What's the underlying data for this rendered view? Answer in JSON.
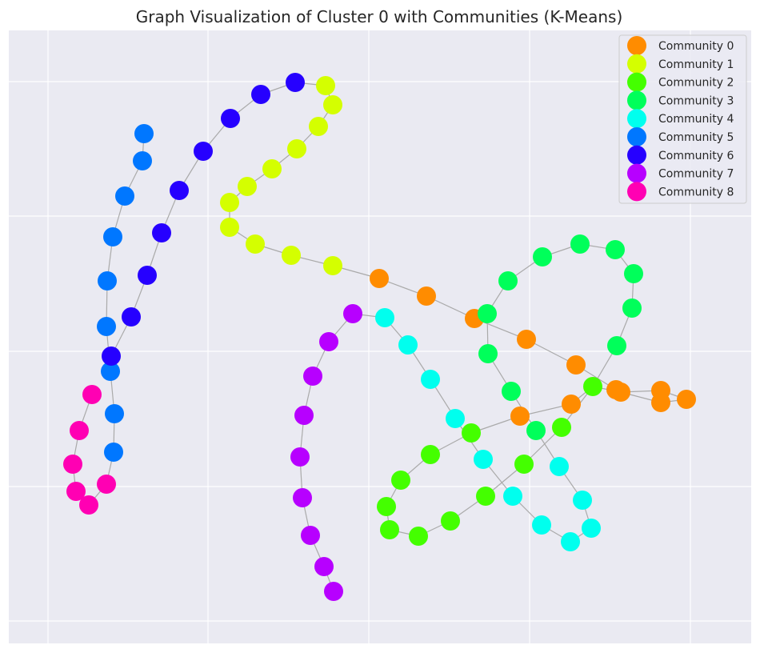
{
  "chart_data": {
    "type": "scatter",
    "title": "Graph Visualization of Cluster 0 with Communities (K-Means)",
    "xlabel": "",
    "ylabel": "",
    "grid": true,
    "legend_position": "top-right",
    "background": "#eaeaf2",
    "edge_color": "#aaaaaa",
    "series": [
      {
        "name": "Community 0",
        "color": "#ff8c00",
        "points": [
          [
            533,
            370
          ],
          [
            593,
            398
          ],
          [
            658,
            424
          ],
          [
            720,
            456
          ],
          [
            714,
            505
          ],
          [
            650,
            520
          ],
          [
            770,
            487
          ],
          [
            776,
            490
          ],
          [
            826,
            488
          ],
          [
            826,
            503
          ],
          [
            858,
            499
          ],
          [
            474,
            348
          ]
        ]
      },
      {
        "name": "Community 1",
        "color": "#d4ff00",
        "points": [
          [
            407,
            107
          ],
          [
            416,
            131
          ],
          [
            398,
            158
          ],
          [
            371,
            186
          ],
          [
            340,
            211
          ],
          [
            309,
            233
          ],
          [
            287,
            253
          ],
          [
            287,
            284
          ],
          [
            319,
            305
          ],
          [
            364,
            319
          ],
          [
            416,
            332
          ]
        ]
      },
      {
        "name": "Community 2",
        "color": "#44ff00",
        "points": [
          [
            741,
            483
          ],
          [
            702,
            534
          ],
          [
            589,
            541
          ],
          [
            538,
            568
          ],
          [
            501,
            600
          ],
          [
            483,
            633
          ],
          [
            487,
            662
          ],
          [
            523,
            670
          ],
          [
            563,
            651
          ],
          [
            607,
            620
          ],
          [
            655,
            580
          ]
        ]
      },
      {
        "name": "Community 3",
        "color": "#00ff5a",
        "points": [
          [
            609,
            392
          ],
          [
            610,
            442
          ],
          [
            639,
            489
          ],
          [
            670,
            538
          ],
          [
            635,
            351
          ],
          [
            678,
            321
          ],
          [
            725,
            305
          ],
          [
            769,
            312
          ],
          [
            792,
            342
          ],
          [
            790,
            385
          ],
          [
            771,
            432
          ]
        ]
      },
      {
        "name": "Community 4",
        "color": "#00ffee",
        "points": [
          [
            481,
            397
          ],
          [
            510,
            431
          ],
          [
            538,
            474
          ],
          [
            569,
            523
          ],
          [
            604,
            574
          ],
          [
            641,
            620
          ],
          [
            677,
            656
          ],
          [
            713,
            677
          ],
          [
            739,
            660
          ],
          [
            728,
            625
          ],
          [
            699,
            583
          ]
        ]
      },
      {
        "name": "Community 5",
        "color": "#0077ff",
        "points": [
          [
            180,
            167
          ],
          [
            178,
            201
          ],
          [
            156,
            245
          ],
          [
            141,
            296
          ],
          [
            134,
            351
          ],
          [
            133,
            408
          ],
          [
            138,
            464
          ],
          [
            143,
            517
          ],
          [
            142,
            565
          ]
        ]
      },
      {
        "name": "Community 6",
        "color": "#2600ff",
        "points": [
          [
            369,
            103
          ],
          [
            326,
            118
          ],
          [
            288,
            148
          ],
          [
            254,
            189
          ],
          [
            224,
            238
          ],
          [
            202,
            291
          ],
          [
            184,
            344
          ],
          [
            164,
            396
          ],
          [
            139,
            445
          ]
        ]
      },
      {
        "name": "Community 7",
        "color": "#b700ff",
        "points": [
          [
            441,
            392
          ],
          [
            411,
            427
          ],
          [
            391,
            470
          ],
          [
            380,
            519
          ],
          [
            375,
            571
          ],
          [
            378,
            622
          ],
          [
            388,
            669
          ],
          [
            405,
            708
          ],
          [
            417,
            739
          ]
        ]
      },
      {
        "name": "Community 8",
        "color": "#ff00b3",
        "points": [
          [
            115,
            493
          ],
          [
            99,
            538
          ],
          [
            91,
            580
          ],
          [
            95,
            614
          ],
          [
            111,
            631
          ],
          [
            133,
            605
          ]
        ]
      }
    ],
    "edges": [
      [
        [
          180,
          167
        ],
        [
          178,
          201
        ]
      ],
      [
        [
          178,
          201
        ],
        [
          156,
          245
        ]
      ],
      [
        [
          156,
          245
        ],
        [
          141,
          296
        ]
      ],
      [
        [
          141,
          296
        ],
        [
          134,
          351
        ]
      ],
      [
        [
          134,
          351
        ],
        [
          133,
          408
        ]
      ],
      [
        [
          133,
          408
        ],
        [
          138,
          464
        ]
      ],
      [
        [
          138,
          464
        ],
        [
          143,
          517
        ]
      ],
      [
        [
          143,
          517
        ],
        [
          142,
          565
        ]
      ],
      [
        [
          142,
          565
        ],
        [
          133,
          605
        ]
      ],
      [
        [
          133,
          605
        ],
        [
          111,
          631
        ]
      ],
      [
        [
          111,
          631
        ],
        [
          95,
          614
        ]
      ],
      [
        [
          95,
          614
        ],
        [
          91,
          580
        ]
      ],
      [
        [
          91,
          580
        ],
        [
          99,
          538
        ]
      ],
      [
        [
          99,
          538
        ],
        [
          115,
          493
        ]
      ],
      [
        [
          139,
          445
        ],
        [
          164,
          396
        ]
      ],
      [
        [
          164,
          396
        ],
        [
          184,
          344
        ]
      ],
      [
        [
          184,
          344
        ],
        [
          202,
          291
        ]
      ],
      [
        [
          202,
          291
        ],
        [
          224,
          238
        ]
      ],
      [
        [
          224,
          238
        ],
        [
          254,
          189
        ]
      ],
      [
        [
          254,
          189
        ],
        [
          288,
          148
        ]
      ],
      [
        [
          288,
          148
        ],
        [
          326,
          118
        ]
      ],
      [
        [
          326,
          118
        ],
        [
          369,
          103
        ]
      ],
      [
        [
          369,
          103
        ],
        [
          407,
          107
        ]
      ],
      [
        [
          407,
          107
        ],
        [
          416,
          131
        ]
      ],
      [
        [
          416,
          131
        ],
        [
          398,
          158
        ]
      ],
      [
        [
          398,
          158
        ],
        [
          371,
          186
        ]
      ],
      [
        [
          371,
          186
        ],
        [
          340,
          211
        ]
      ],
      [
        [
          340,
          211
        ],
        [
          309,
          233
        ]
      ],
      [
        [
          309,
          233
        ],
        [
          287,
          253
        ]
      ],
      [
        [
          287,
          253
        ],
        [
          287,
          284
        ]
      ],
      [
        [
          287,
          284
        ],
        [
          319,
          305
        ]
      ],
      [
        [
          319,
          305
        ],
        [
          364,
          319
        ]
      ],
      [
        [
          364,
          319
        ],
        [
          416,
          332
        ]
      ],
      [
        [
          416,
          332
        ],
        [
          474,
          348
        ]
      ],
      [
        [
          474,
          348
        ],
        [
          533,
          370
        ]
      ],
      [
        [
          533,
          370
        ],
        [
          593,
          398
        ]
      ],
      [
        [
          593,
          398
        ],
        [
          658,
          424
        ]
      ],
      [
        [
          658,
          424
        ],
        [
          720,
          456
        ]
      ],
      [
        [
          720,
          456
        ],
        [
          770,
          487
        ]
      ],
      [
        [
          770,
          487
        ],
        [
          776,
          490
        ]
      ],
      [
        [
          776,
          490
        ],
        [
          826,
          488
        ]
      ],
      [
        [
          826,
          488
        ],
        [
          858,
          499
        ]
      ],
      [
        [
          858,
          499
        ],
        [
          826,
          503
        ]
      ],
      [
        [
          826,
          503
        ],
        [
          776,
          490
        ]
      ],
      [
        [
          776,
          490
        ],
        [
          741,
          483
        ]
      ],
      [
        [
          741,
          483
        ],
        [
          714,
          505
        ]
      ],
      [
        [
          714,
          505
        ],
        [
          650,
          520
        ]
      ],
      [
        [
          650,
          520
        ],
        [
          589,
          541
        ]
      ],
      [
        [
          589,
          541
        ],
        [
          538,
          568
        ]
      ],
      [
        [
          538,
          568
        ],
        [
          501,
          600
        ]
      ],
      [
        [
          501,
          600
        ],
        [
          483,
          633
        ]
      ],
      [
        [
          483,
          633
        ],
        [
          487,
          662
        ]
      ],
      [
        [
          487,
          662
        ],
        [
          523,
          670
        ]
      ],
      [
        [
          523,
          670
        ],
        [
          563,
          651
        ]
      ],
      [
        [
          563,
          651
        ],
        [
          607,
          620
        ]
      ],
      [
        [
          607,
          620
        ],
        [
          655,
          580
        ]
      ],
      [
        [
          655,
          580
        ],
        [
          702,
          534
        ]
      ],
      [
        [
          702,
          534
        ],
        [
          741,
          483
        ]
      ],
      [
        [
          593,
          398
        ],
        [
          609,
          392
        ]
      ],
      [
        [
          609,
          392
        ],
        [
          610,
          442
        ]
      ],
      [
        [
          610,
          442
        ],
        [
          639,
          489
        ]
      ],
      [
        [
          639,
          489
        ],
        [
          670,
          538
        ]
      ],
      [
        [
          609,
          392
        ],
        [
          635,
          351
        ]
      ],
      [
        [
          635,
          351
        ],
        [
          678,
          321
        ]
      ],
      [
        [
          678,
          321
        ],
        [
          725,
          305
        ]
      ],
      [
        [
          725,
          305
        ],
        [
          769,
          312
        ]
      ],
      [
        [
          769,
          312
        ],
        [
          792,
          342
        ]
      ],
      [
        [
          792,
          342
        ],
        [
          790,
          385
        ]
      ],
      [
        [
          790,
          385
        ],
        [
          771,
          432
        ]
      ],
      [
        [
          771,
          432
        ],
        [
          741,
          483
        ]
      ],
      [
        [
          441,
          392
        ],
        [
          481,
          397
        ]
      ],
      [
        [
          481,
          397
        ],
        [
          510,
          431
        ]
      ],
      [
        [
          510,
          431
        ],
        [
          538,
          474
        ]
      ],
      [
        [
          538,
          474
        ],
        [
          569,
          523
        ]
      ],
      [
        [
          569,
          523
        ],
        [
          604,
          574
        ]
      ],
      [
        [
          604,
          574
        ],
        [
          641,
          620
        ]
      ],
      [
        [
          641,
          620
        ],
        [
          677,
          656
        ]
      ],
      [
        [
          677,
          656
        ],
        [
          713,
          677
        ]
      ],
      [
        [
          713,
          677
        ],
        [
          739,
          660
        ]
      ],
      [
        [
          739,
          660
        ],
        [
          728,
          625
        ]
      ],
      [
        [
          728,
          625
        ],
        [
          699,
          583
        ]
      ],
      [
        [
          699,
          583
        ],
        [
          670,
          538
        ]
      ],
      [
        [
          441,
          392
        ],
        [
          411,
          427
        ]
      ],
      [
        [
          411,
          427
        ],
        [
          391,
          470
        ]
      ],
      [
        [
          391,
          470
        ],
        [
          380,
          519
        ]
      ],
      [
        [
          380,
          519
        ],
        [
          375,
          571
        ]
      ],
      [
        [
          375,
          571
        ],
        [
          378,
          622
        ]
      ],
      [
        [
          378,
          622
        ],
        [
          388,
          669
        ]
      ],
      [
        [
          388,
          669
        ],
        [
          405,
          708
        ]
      ],
      [
        [
          405,
          708
        ],
        [
          417,
          739
        ]
      ]
    ]
  }
}
